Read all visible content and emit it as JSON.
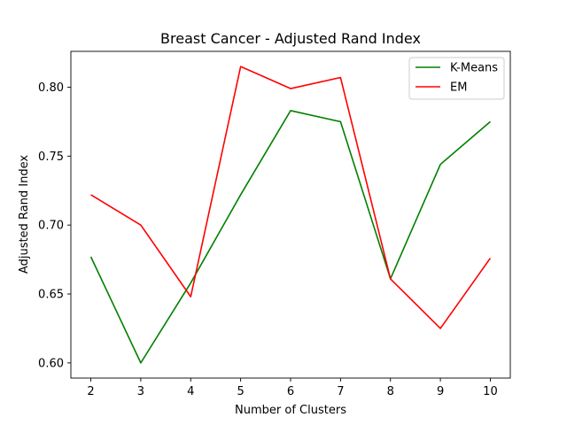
{
  "chart_data": {
    "type": "line",
    "title": "Breast Cancer - Adjusted Rand Index",
    "xlabel": "Number of Clusters",
    "ylabel": "Adjusted Rand Index",
    "x": [
      2,
      3,
      4,
      5,
      6,
      7,
      8,
      9,
      10
    ],
    "xlim": [
      1.6,
      10.4
    ],
    "ylim": [
      0.589,
      0.826
    ],
    "xticks": [
      "2",
      "3",
      "4",
      "5",
      "6",
      "7",
      "8",
      "9",
      "10"
    ],
    "yticks": [
      {
        "value": 0.6,
        "label": "0.60"
      },
      {
        "value": 0.65,
        "label": "0.65"
      },
      {
        "value": 0.7,
        "label": "0.70"
      },
      {
        "value": 0.75,
        "label": "0.75"
      },
      {
        "value": 0.8,
        "label": "0.80"
      }
    ],
    "grid": false,
    "legend_position": "top-right",
    "series": [
      {
        "name": "K-Means",
        "color": "#008000",
        "values": [
          0.677,
          0.6,
          0.658,
          0.722,
          0.783,
          0.775,
          0.661,
          0.744,
          0.775
        ]
      },
      {
        "name": "EM",
        "color": "#ff0000",
        "values": [
          0.722,
          0.7,
          0.648,
          0.815,
          0.799,
          0.807,
          0.661,
          0.625,
          0.676
        ]
      }
    ]
  }
}
